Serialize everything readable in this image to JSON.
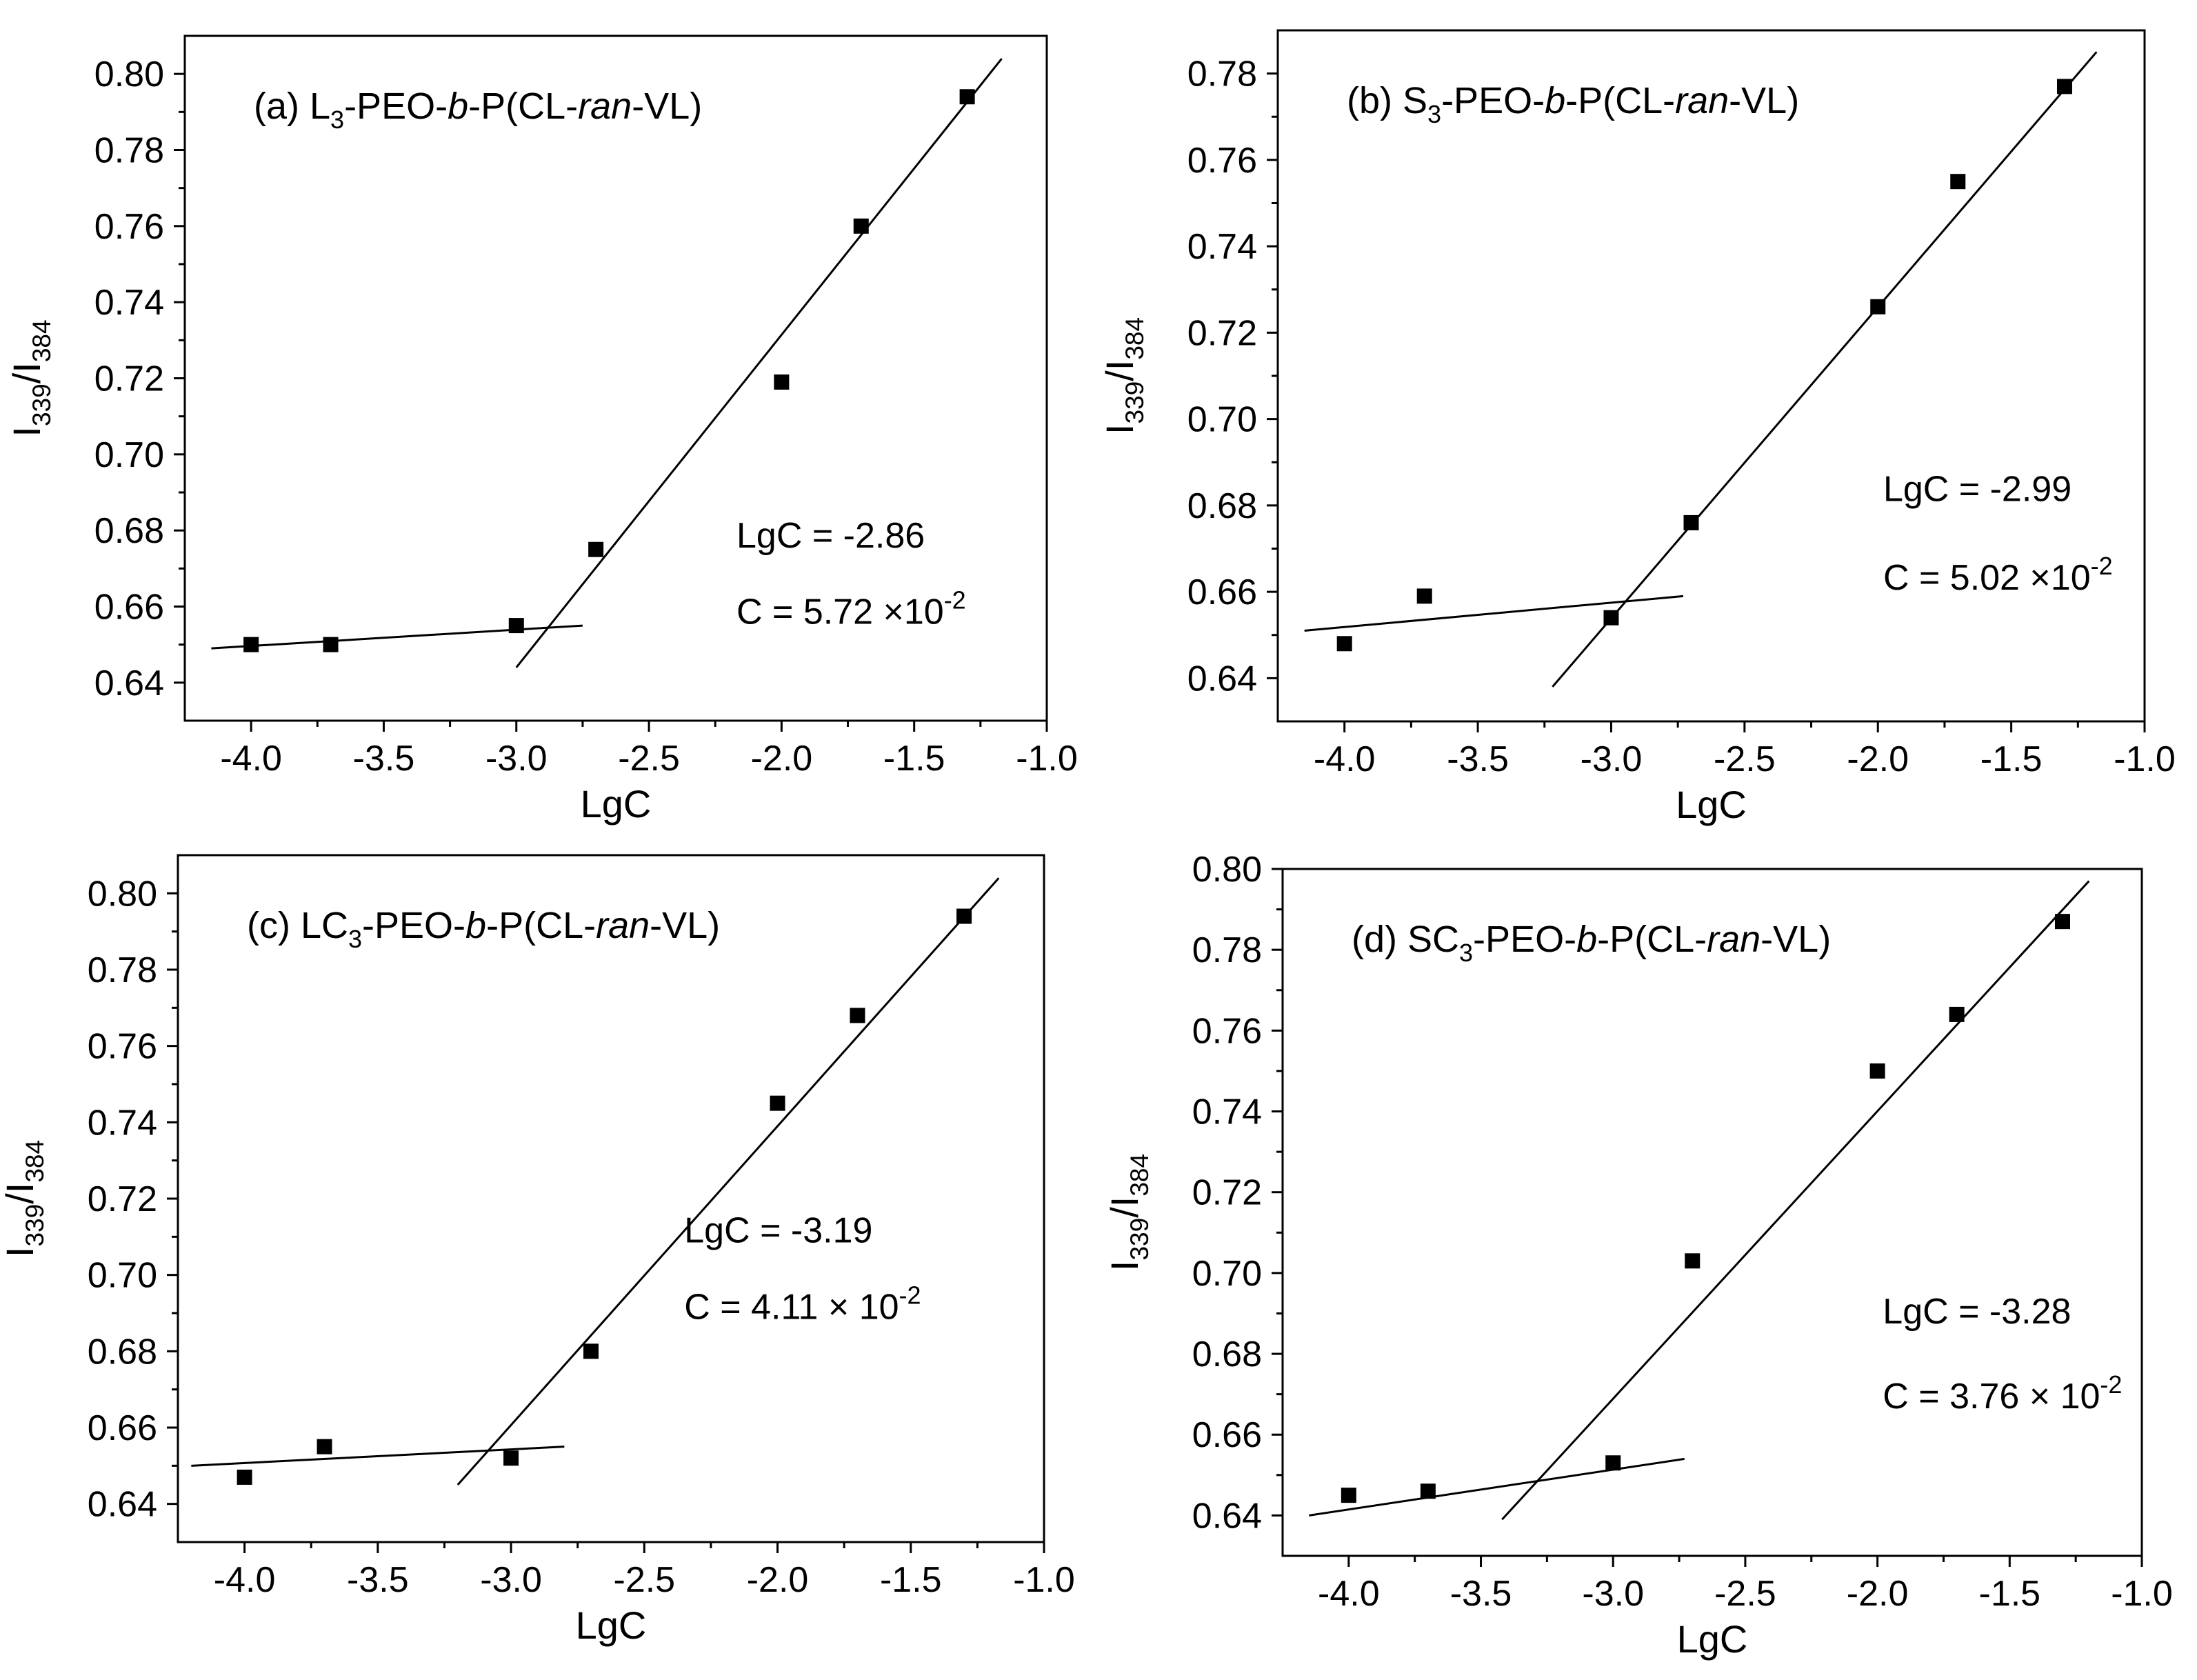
{
  "chart_data": [
    {
      "type": "scatter",
      "panel_label": [
        {
          "t": "(a) L"
        },
        {
          "t": "3",
          "sub": true
        },
        {
          "t": "-PEO-"
        },
        {
          "t": "b",
          "italic": true
        },
        {
          "t": "-P(CL-"
        },
        {
          "t": "ran",
          "italic": true
        },
        {
          "t": "-VL)"
        }
      ],
      "xlabel": "LgC",
      "ylabel": [
        {
          "t": "I"
        },
        {
          "t": "339",
          "sub": true
        },
        {
          "t": "/I"
        },
        {
          "t": "384",
          "sub": true
        }
      ],
      "xlim": [
        -4.25,
        -1.0
      ],
      "ylim": [
        0.63,
        0.81
      ],
      "xticks": [
        -4.0,
        -3.5,
        -3.0,
        -2.5,
        -2.0,
        -1.5,
        -1.0
      ],
      "xtick_labels": [
        "-4.0",
        "-3.5",
        "-3.0",
        "-2.5",
        "-2.0",
        "-1.5",
        "-1.0"
      ],
      "yticks": [
        0.64,
        0.66,
        0.68,
        0.7,
        0.72,
        0.74,
        0.76,
        0.78,
        0.8
      ],
      "ytick_labels": [
        "0.64",
        "0.66",
        "0.68",
        "0.70",
        "0.72",
        "0.74",
        "0.76",
        "0.78",
        "0.80"
      ],
      "points": {
        "x": [
          -4.0,
          -3.7,
          -3.0,
          -2.7,
          -2.0,
          -1.7,
          -1.3
        ],
        "y": [
          0.65,
          0.65,
          0.655,
          0.675,
          0.719,
          0.76,
          0.794
        ]
      },
      "fit_lines": [
        {
          "x": [
            -4.15,
            -2.75
          ],
          "y": [
            0.649,
            0.655
          ]
        },
        {
          "x": [
            -3.0,
            -1.17
          ],
          "y": [
            0.644,
            0.804
          ]
        }
      ],
      "annotations": [
        {
          "text": "LgC = -2.86",
          "x": -2.17,
          "y": 0.6755
        },
        {
          "text": "C = 5.72 ×10",
          "sup": "-2",
          "x": -2.17,
          "y": 0.6555
        }
      ],
      "grid": false
    },
    {
      "type": "scatter",
      "panel_label": [
        {
          "t": "(b) S"
        },
        {
          "t": "3",
          "sub": true
        },
        {
          "t": "-PEO-"
        },
        {
          "t": "b",
          "italic": true
        },
        {
          "t": "-P(CL-"
        },
        {
          "t": "ran",
          "italic": true
        },
        {
          "t": "-VL)"
        }
      ],
      "xlabel": "LgC",
      "ylabel": [
        {
          "t": "I"
        },
        {
          "t": "339",
          "sub": true
        },
        {
          "t": "/I"
        },
        {
          "t": "384",
          "sub": true
        }
      ],
      "xlim": [
        -4.25,
        -1.0
      ],
      "ylim": [
        0.63,
        0.79
      ],
      "xticks": [
        -4.0,
        -3.5,
        -3.0,
        -2.5,
        -2.0,
        -1.5,
        -1.0
      ],
      "xtick_labels": [
        "-4.0",
        "-3.5",
        "-3.0",
        "-2.5",
        "-2.0",
        "-1.5",
        "-1.0"
      ],
      "yticks": [
        0.64,
        0.66,
        0.68,
        0.7,
        0.72,
        0.74,
        0.76,
        0.78
      ],
      "ytick_labels": [
        "0.64",
        "0.66",
        "0.68",
        "0.70",
        "0.72",
        "0.74",
        "0.76",
        "0.78"
      ],
      "points": {
        "x": [
          -4.0,
          -3.7,
          -3.0,
          -2.7,
          -2.0,
          -1.7,
          -1.3
        ],
        "y": [
          0.648,
          0.659,
          0.654,
          0.676,
          0.726,
          0.755,
          0.777
        ]
      },
      "fit_lines": [
        {
          "x": [
            -4.15,
            -2.73
          ],
          "y": [
            0.651,
            0.659
          ]
        },
        {
          "x": [
            -3.22,
            -1.18
          ],
          "y": [
            0.638,
            0.785
          ]
        }
      ],
      "annotations": [
        {
          "text": "LgC = -2.99",
          "x": -1.98,
          "y": 0.681
        },
        {
          "text": "C = 5.02 ×10",
          "sup": "-2",
          "x": -1.98,
          "y": 0.6605
        }
      ],
      "grid": false
    },
    {
      "type": "scatter",
      "panel_label": [
        {
          "t": "(c) LC"
        },
        {
          "t": "3",
          "sub": true
        },
        {
          "t": "-PEO-"
        },
        {
          "t": "b",
          "italic": true
        },
        {
          "t": "-P(CL-"
        },
        {
          "t": "ran",
          "italic": true
        },
        {
          "t": "-VL)"
        }
      ],
      "xlabel": "LgC",
      "ylabel": [
        {
          "t": "I"
        },
        {
          "t": "339",
          "sub": true
        },
        {
          "t": "/I"
        },
        {
          "t": "384",
          "sub": true
        }
      ],
      "xlim": [
        -4.25,
        -1.0
      ],
      "ylim": [
        0.63,
        0.81
      ],
      "xticks": [
        -4.0,
        -3.5,
        -3.0,
        -2.5,
        -2.0,
        -1.5,
        -1.0
      ],
      "xtick_labels": [
        "-4.0",
        "-3.5",
        "-3.0",
        "-2.5",
        "-2.0",
        "-1.5",
        "-1.0"
      ],
      "yticks": [
        0.64,
        0.66,
        0.68,
        0.7,
        0.72,
        0.74,
        0.76,
        0.78,
        0.8
      ],
      "ytick_labels": [
        "0.64",
        "0.66",
        "0.68",
        "0.70",
        "0.72",
        "0.74",
        "0.76",
        "0.78",
        "0.80"
      ],
      "points": {
        "x": [
          -4.0,
          -3.7,
          -3.0,
          -2.7,
          -2.0,
          -1.7,
          -1.3
        ],
        "y": [
          0.647,
          0.655,
          0.652,
          0.68,
          0.745,
          0.768,
          0.794
        ]
      },
      "fit_lines": [
        {
          "x": [
            -4.2,
            -2.8
          ],
          "y": [
            0.65,
            0.655
          ]
        },
        {
          "x": [
            -3.2,
            -1.17
          ],
          "y": [
            0.645,
            0.804
          ]
        }
      ],
      "annotations": [
        {
          "text": "LgC = -3.19",
          "x": -2.35,
          "y": 0.7085
        },
        {
          "text": "C = 4.11 × 10",
          "sup": "-2",
          "x": -2.35,
          "y": 0.6885
        }
      ],
      "grid": false
    },
    {
      "type": "scatter",
      "panel_label": [
        {
          "t": "(d) SC"
        },
        {
          "t": "3",
          "sub": true
        },
        {
          "t": "-PEO-"
        },
        {
          "t": "b",
          "italic": true
        },
        {
          "t": "-P(CL-"
        },
        {
          "t": "ran",
          "italic": true
        },
        {
          "t": "-VL)"
        }
      ],
      "xlabel": "LgC",
      "ylabel": [
        {
          "t": "I"
        },
        {
          "t": "339",
          "sub": true
        },
        {
          "t": "/I"
        },
        {
          "t": "384",
          "sub": true
        }
      ],
      "xlim": [
        -4.25,
        -1.0
      ],
      "ylim": [
        0.63,
        0.8
      ],
      "xticks": [
        -4.0,
        -3.5,
        -3.0,
        -2.5,
        -2.0,
        -1.5,
        -1.0
      ],
      "xtick_labels": [
        "-4.0",
        "-3.5",
        "-3.0",
        "-2.5",
        "-2.0",
        "-1.5",
        "-1.0"
      ],
      "yticks": [
        0.64,
        0.66,
        0.68,
        0.7,
        0.72,
        0.74,
        0.76,
        0.78,
        0.8
      ],
      "ytick_labels": [
        "0.64",
        "0.66",
        "0.68",
        "0.70",
        "0.72",
        "0.74",
        "0.76",
        "0.78",
        "0.80"
      ],
      "points": {
        "x": [
          -4.0,
          -3.7,
          -3.0,
          -2.7,
          -2.0,
          -1.7,
          -1.3
        ],
        "y": [
          0.645,
          0.646,
          0.653,
          0.703,
          0.75,
          0.764,
          0.787
        ]
      },
      "fit_lines": [
        {
          "x": [
            -4.15,
            -2.73
          ],
          "y": [
            0.64,
            0.654
          ]
        },
        {
          "x": [
            -3.42,
            -1.2
          ],
          "y": [
            0.639,
            0.797
          ]
        }
      ],
      "annotations": [
        {
          "text": "LgC = -3.28",
          "x": -1.98,
          "y": 0.6875
        },
        {
          "text": "C = 3.76 × 10",
          "sup": "-2",
          "x": -1.98,
          "y": 0.6665
        }
      ],
      "grid": false
    }
  ]
}
